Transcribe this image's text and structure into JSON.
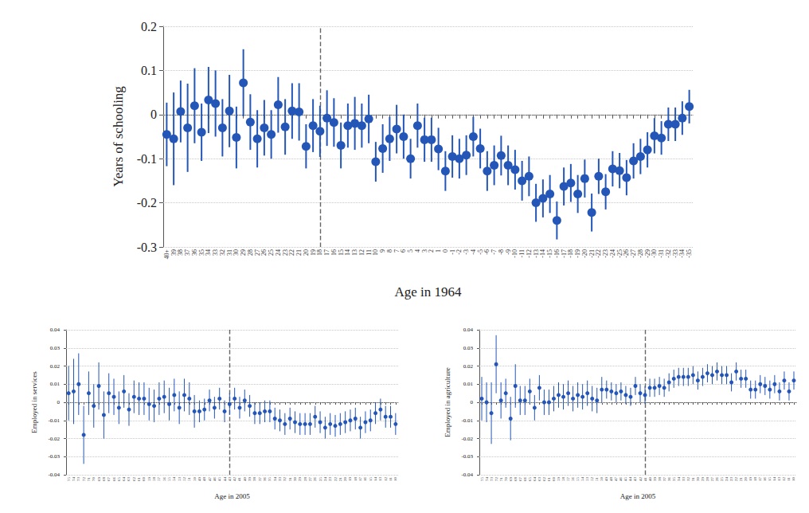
{
  "chart_data": [
    {
      "type": "scatter",
      "x_label": "Age in 1964",
      "y_label": "Years of schooling",
      "categories": [
        "40+",
        "39",
        "38",
        "37",
        "36",
        "35",
        "34",
        "33",
        "32",
        "31",
        "30",
        "29",
        "28",
        "27",
        "26",
        "25",
        "24",
        "23",
        "22",
        "21",
        "20",
        "19",
        "18",
        "17",
        "16",
        "15",
        "14",
        "13",
        "12",
        "11",
        "10",
        "9",
        "8",
        "7",
        "6",
        "5",
        "4",
        "3",
        "2",
        "1",
        "0",
        "-1",
        "-2",
        "-3",
        "-4",
        "-5",
        "-6",
        "-7",
        "-8",
        "-9",
        "-10",
        "-11",
        "-12",
        "-13",
        "-14",
        "-15",
        "-16",
        "-17",
        "-18",
        "-19",
        "-20",
        "-21",
        "-22",
        "-23",
        "-24",
        "-25",
        "-26",
        "-27",
        "-28",
        "-29",
        "-30",
        "-31",
        "-32",
        "-33",
        "-34",
        "-35"
      ],
      "values": [
        -0.045,
        -0.055,
        0.007,
        -0.03,
        0.02,
        -0.04,
        0.033,
        0.025,
        -0.03,
        0.008,
        -0.052,
        0.072,
        -0.017,
        -0.055,
        -0.03,
        -0.045,
        0.022,
        -0.028,
        0.008,
        0.006,
        -0.072,
        -0.025,
        -0.038,
        -0.008,
        -0.018,
        -0.07,
        -0.025,
        -0.02,
        -0.025,
        -0.01,
        -0.107,
        -0.077,
        -0.055,
        -0.033,
        -0.05,
        -0.1,
        -0.025,
        -0.057,
        -0.057,
        -0.078,
        -0.128,
        -0.095,
        -0.1,
        -0.092,
        -0.05,
        -0.077,
        -0.128,
        -0.115,
        -0.093,
        -0.115,
        -0.125,
        -0.15,
        -0.14,
        -0.2,
        -0.19,
        -0.18,
        -0.24,
        -0.163,
        -0.155,
        -0.18,
        -0.145,
        -0.222,
        -0.14,
        -0.175,
        -0.123,
        -0.127,
        -0.143,
        -0.105,
        -0.095,
        -0.08,
        -0.048,
        -0.053,
        -0.022,
        -0.022,
        -0.008,
        0.018
      ],
      "errors": [
        0.072,
        0.105,
        0.07,
        0.1,
        0.085,
        0.065,
        0.075,
        0.075,
        0.065,
        0.082,
        0.07,
        0.076,
        0.063,
        0.065,
        0.063,
        0.055,
        0.063,
        0.063,
        0.063,
        0.065,
        0.05,
        0.06,
        0.058,
        0.063,
        0.055,
        0.052,
        0.05,
        0.06,
        0.05,
        0.055,
        0.045,
        0.055,
        0.05,
        0.055,
        0.05,
        0.045,
        0.05,
        0.05,
        0.05,
        0.048,
        0.045,
        0.048,
        0.045,
        0.045,
        0.045,
        0.045,
        0.045,
        0.045,
        0.045,
        0.045,
        0.045,
        0.045,
        0.045,
        0.043,
        0.043,
        0.043,
        0.043,
        0.043,
        0.043,
        0.043,
        0.043,
        0.043,
        0.04,
        0.04,
        0.04,
        0.04,
        0.04,
        0.04,
        0.04,
        0.04,
        0.04,
        0.038,
        0.038,
        0.038,
        0.038,
        0.038
      ],
      "ylim": [
        -0.3,
        0.2
      ],
      "yticks": [
        -0.3,
        -0.2,
        -0.1,
        0,
        0.1,
        0.2
      ],
      "vline": "18",
      "hline": 0,
      "color": "#2456b8",
      "marker": "circle",
      "grid": true
    },
    {
      "type": "scatter",
      "x_label": "Age in 2005",
      "y_label": "Employed in services",
      "categories": [
        "75",
        "74",
        "73",
        "72",
        "71",
        "70",
        "69",
        "68",
        "67",
        "66",
        "65",
        "64",
        "63",
        "62",
        "61",
        "60",
        "59",
        "58",
        "57",
        "56",
        "55",
        "54",
        "53",
        "52",
        "51",
        "50",
        "49",
        "48",
        "47",
        "46",
        "45",
        "44",
        "43",
        "42",
        "41",
        "40",
        "39",
        "38",
        "37",
        "36",
        "35",
        "34",
        "33",
        "32",
        "31",
        "30",
        "29",
        "28",
        "27",
        "26",
        "25",
        "24",
        "23",
        "22",
        "21",
        "20",
        "19",
        "18",
        "17",
        "16",
        "15",
        "14",
        "13",
        "12",
        "11",
        "10"
      ],
      "values": [
        0.005,
        0.006,
        0.01,
        -0.018,
        0.005,
        -0.002,
        0.009,
        -0.007,
        0.005,
        0.003,
        -0.003,
        0.006,
        -0.004,
        0.003,
        0.002,
        0.002,
        -0.001,
        -0.002,
        0.002,
        0.003,
        -0.001,
        0.004,
        -0.003,
        0.004,
        0.002,
        -0.005,
        -0.005,
        -0.004,
        0.001,
        -0.003,
        0.002,
        -0.005,
        -0.001,
        0.002,
        -0.003,
        0.001,
        -0.002,
        -0.006,
        -0.006,
        -0.005,
        -0.005,
        -0.009,
        -0.01,
        -0.012,
        -0.009,
        -0.011,
        -0.012,
        -0.012,
        -0.012,
        -0.008,
        -0.011,
        -0.014,
        -0.012,
        -0.013,
        -0.012,
        -0.011,
        -0.01,
        -0.009,
        -0.014,
        -0.011,
        -0.01,
        -0.006,
        -0.004,
        -0.008,
        -0.008,
        -0.012
      ],
      "errors": [
        0.015,
        0.018,
        0.017,
        0.016,
        0.012,
        0.012,
        0.013,
        0.013,
        0.011,
        0.01,
        0.009,
        0.009,
        0.009,
        0.009,
        0.009,
        0.009,
        0.009,
        0.009,
        0.009,
        0.009,
        0.009,
        0.009,
        0.009,
        0.009,
        0.009,
        0.009,
        0.006,
        0.006,
        0.006,
        0.006,
        0.006,
        0.006,
        0.006,
        0.006,
        0.006,
        0.006,
        0.006,
        0.006,
        0.006,
        0.006,
        0.006,
        0.006,
        0.006,
        0.006,
        0.006,
        0.006,
        0.006,
        0.006,
        0.006,
        0.006,
        0.006,
        0.006,
        0.006,
        0.006,
        0.006,
        0.006,
        0.006,
        0.006,
        0.006,
        0.006,
        0.006,
        0.006,
        0.006,
        0.006,
        0.006,
        0.006
      ],
      "ylim": [
        -0.04,
        0.04
      ],
      "yticks": [
        -0.04,
        -0.03,
        -0.02,
        -0.01,
        0,
        0.01,
        0.02,
        0.03,
        0.04
      ],
      "vline": "43",
      "hline": 0,
      "color": "#2456b8",
      "marker": "circle",
      "grid": true
    },
    {
      "type": "scatter",
      "x_label": "Age in 2005",
      "y_label": "Employed in agriculture",
      "categories": [
        "75",
        "74",
        "73",
        "72",
        "71",
        "70",
        "69",
        "68",
        "67",
        "66",
        "65",
        "64",
        "63",
        "62",
        "61",
        "60",
        "59",
        "58",
        "57",
        "56",
        "55",
        "54",
        "53",
        "52",
        "51",
        "50",
        "49",
        "48",
        "47",
        "46",
        "45",
        "44",
        "43",
        "42",
        "41",
        "40",
        "39",
        "38",
        "37",
        "36",
        "35",
        "34",
        "33",
        "32",
        "31",
        "30",
        "29",
        "28",
        "27",
        "26",
        "25",
        "24",
        "23",
        "22",
        "21",
        "20",
        "19",
        "18",
        "17",
        "16",
        "15",
        "14",
        "13",
        "12",
        "11",
        "10"
      ],
      "values": [
        0.002,
        0,
        -0.006,
        0.021,
        0.001,
        0.005,
        -0.009,
        0.009,
        0.001,
        0.001,
        0.006,
        -0.003,
        0.008,
        0,
        0,
        0.002,
        0.004,
        0.003,
        0.005,
        0.002,
        0.004,
        0.003,
        0.005,
        0.002,
        0.001,
        0.007,
        0.007,
        0.006,
        0.005,
        0.006,
        0.004,
        0.003,
        0.009,
        0.005,
        0.004,
        0.008,
        0.008,
        0.009,
        0.008,
        0.011,
        0.013,
        0.014,
        0.014,
        0.014,
        0.015,
        0.012,
        0.014,
        0.016,
        0.015,
        0.017,
        0.015,
        0.015,
        0.011,
        0.017,
        0.013,
        0.013,
        0.007,
        0.007,
        0.01,
        0.009,
        0.007,
        0.01,
        0.006,
        0.012,
        0.006,
        0.012
      ],
      "errors": [
        0.012,
        0.011,
        0.017,
        0.016,
        0.01,
        0.008,
        0.012,
        0.012,
        0.008,
        0.008,
        0.007,
        0.007,
        0.007,
        0.007,
        0.007,
        0.007,
        0.007,
        0.007,
        0.007,
        0.007,
        0.007,
        0.007,
        0.007,
        0.007,
        0.007,
        0.007,
        0.005,
        0.005,
        0.005,
        0.005,
        0.005,
        0.005,
        0.005,
        0.005,
        0.005,
        0.005,
        0.005,
        0.005,
        0.005,
        0.005,
        0.005,
        0.005,
        0.005,
        0.005,
        0.005,
        0.005,
        0.005,
        0.005,
        0.005,
        0.005,
        0.005,
        0.005,
        0.005,
        0.005,
        0.005,
        0.005,
        0.005,
        0.005,
        0.005,
        0.005,
        0.005,
        0.005,
        0.005,
        0.005,
        0.005,
        0.005
      ],
      "ylim": [
        -0.04,
        0.04
      ],
      "yticks": [
        -0.04,
        -0.03,
        -0.02,
        -0.01,
        0,
        0.01,
        0.02,
        0.03,
        0.04
      ],
      "vline": "41",
      "hline": 0,
      "color": "#2456b8",
      "marker": "circle",
      "grid": true
    }
  ]
}
